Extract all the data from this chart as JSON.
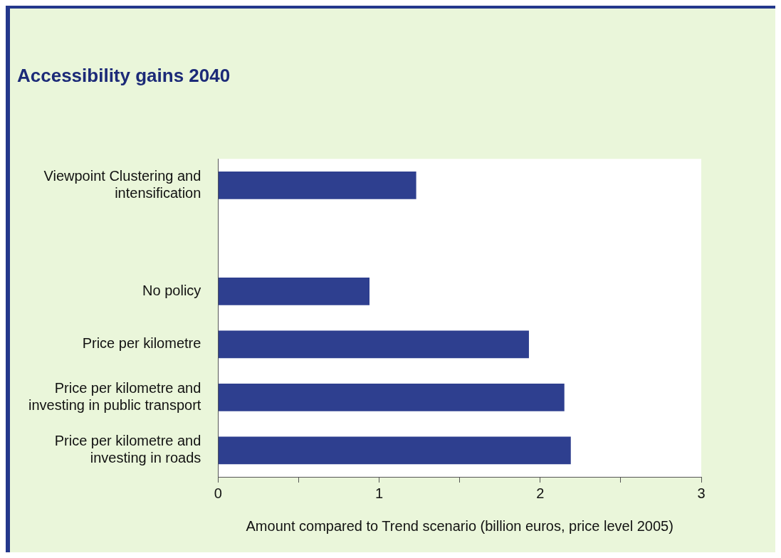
{
  "chart_data": {
    "type": "bar",
    "orientation": "horizontal",
    "title": "Accessibility gains 2040",
    "xlabel": "Amount compared to Trend scenario (billion euros, price level 2005)",
    "categories": [
      "Viewpoint Clustering and intensification",
      null,
      "No policy",
      "Price per kilometre",
      "Price per kilometre and investing in public transport",
      "Price per kilometre and investing in roads"
    ],
    "values": [
      1.23,
      null,
      0.94,
      1.93,
      2.15,
      2.19
    ],
    "color": "#2e3f8f",
    "xlim": [
      0,
      3
    ],
    "xticks": [
      0,
      {
        "value": 0.5,
        "label": null
      },
      1,
      {
        "value": 1.5,
        "label": null
      },
      2,
      {
        "value": 2.5,
        "label": null
      },
      3
    ],
    "grid": false,
    "legend": false
  }
}
